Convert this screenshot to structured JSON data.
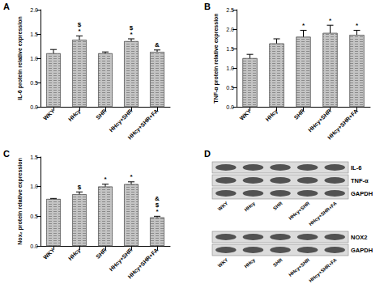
{
  "chart_data": [
    {
      "type": "bar",
      "title": "A",
      "y_label": "IL-6 protein relative expression",
      "categories": [
        "WKY",
        "HHcy",
        "SHR",
        "HHcy+SHR",
        "HHcy+SHR+FA"
      ],
      "values": [
        1.1,
        1.38,
        1.1,
        1.35,
        1.13
      ],
      "errors": [
        0.08,
        0.08,
        0.03,
        0.05,
        0.04
      ],
      "annotations": [
        [],
        [
          "$",
          "*"
        ],
        [],
        [
          "$",
          "*"
        ],
        [
          "&"
        ]
      ],
      "color": "#c4c4c4",
      "ylim": [
        0,
        2.0
      ],
      "yticks": [
        {
          "value": 0,
          "label": "0.0"
        },
        {
          "value": 0.5,
          "label": "0.5"
        },
        {
          "value": 1.0,
          "label": "1.0"
        },
        {
          "value": 1.5,
          "label": "1.5"
        },
        {
          "value": 2.0,
          "label": "2.0"
        }
      ],
      "grid": false
    },
    {
      "type": "bar",
      "title": "B",
      "y_label": "TNF-α protein relative expression",
      "categories": [
        "WKY",
        "HHcy",
        "SHR",
        "HHcy+SHR",
        "HHcy+SHR+FA"
      ],
      "values": [
        1.25,
        1.63,
        1.8,
        1.9,
        1.85
      ],
      "errors": [
        0.1,
        0.12,
        0.17,
        0.2,
        0.12
      ],
      "annotations": [
        [],
        [],
        [
          "*"
        ],
        [
          "*"
        ],
        [
          "*"
        ]
      ],
      "color": "#c4c4c4",
      "ylim": [
        0,
        2.5
      ],
      "yticks": [
        {
          "value": 0,
          "label": "0.0"
        },
        {
          "value": 0.5,
          "label": "0.5"
        },
        {
          "value": 1.0,
          "label": "1.0"
        },
        {
          "value": 1.5,
          "label": "1.5"
        },
        {
          "value": 2.0,
          "label": "2.0"
        },
        {
          "value": 2.5,
          "label": "2.5"
        }
      ],
      "grid": false
    },
    {
      "type": "bar",
      "title": "C",
      "y_label": "Nox₂ protein relative expression",
      "categories": [
        "WKY",
        "HHcy",
        "SHR",
        "HHcy+SHR",
        "HHcy+SHR+FA"
      ],
      "values": [
        0.79,
        0.87,
        1.0,
        1.04,
        0.48
      ],
      "errors": [
        0.01,
        0.04,
        0.04,
        0.04,
        0.02
      ],
      "annotations": [
        [],
        [
          "$"
        ],
        [
          "*"
        ],
        [
          "*"
        ],
        [
          "&",
          "$",
          "*"
        ]
      ],
      "color": "#c4c4c4",
      "ylim": [
        0,
        1.5
      ],
      "yticks": [
        {
          "value": 0,
          "label": "0.0"
        },
        {
          "value": 0.5,
          "label": "0.5"
        },
        {
          "value": 1.0,
          "label": "1.0"
        },
        {
          "value": 1.5,
          "label": "1.5"
        }
      ],
      "grid": false
    }
  ],
  "blot": {
    "title": "D",
    "lanes": [
      "WKY",
      "HHcy",
      "SHR",
      "HHcy+SHR",
      "HHcy+SHR+FA"
    ],
    "blocks": [
      {
        "bands": [
          "IL-6",
          "TNF-α",
          "GAPDH"
        ]
      },
      {
        "bands": [
          "NOX2",
          "GAPDH"
        ]
      }
    ]
  }
}
